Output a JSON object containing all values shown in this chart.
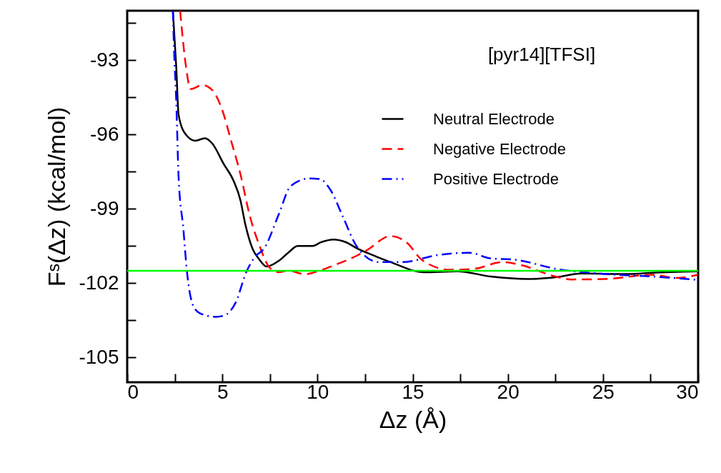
{
  "chart_data": {
    "type": "line",
    "xlabel": "Δz (Å)",
    "ylabel": "Fˢ(Δz) (kcal/mol)",
    "annotations": [
      "[pyr14][TFSI]"
    ],
    "legend": "top right",
    "grid": false,
    "xlim": [
      0,
      30
    ],
    "xticks": [
      0,
      {
        "value": 2.5,
        "label": null
      },
      5,
      {
        "value": 7.5,
        "label": null
      },
      10,
      {
        "value": 12.5,
        "label": null
      },
      15,
      {
        "value": 17.5,
        "label": null
      },
      20,
      {
        "value": 22.5,
        "label": null
      },
      25,
      {
        "value": 27.5,
        "label": null
      },
      30
    ],
    "ylim": [
      -106,
      -91
    ],
    "yticks": [
      {
        "value": -91.5,
        "label": null
      },
      -93,
      {
        "value": -94.5,
        "label": null
      },
      -96,
      {
        "value": -97.5,
        "label": null
      },
      -99,
      {
        "value": -100.5,
        "label": null
      },
      -102,
      {
        "value": -103.5,
        "label": null
      },
      -105
    ],
    "ref_lines": [
      {
        "axis": "y",
        "value": -101.5,
        "color": "#00ff00"
      }
    ],
    "series": [
      {
        "name": "Neutral Electrode",
        "color": "#000000",
        "line_style": "solid",
        "x": [
          2.4,
          2.58,
          2.7,
          3.08,
          3.58,
          4.08,
          4.46,
          5.08,
          5.58,
          5.95,
          6.2,
          6.58,
          6.95,
          7.33,
          7.96,
          8.46,
          8.96,
          9.71,
          10.21,
          10.84,
          11.47,
          12.09,
          12.59,
          13.84,
          15.6,
          17.35,
          19.1,
          21.1,
          22.6,
          23.85,
          26.36,
          27.6,
          30
        ],
        "values": [
          -91,
          -93.3,
          -95.2,
          -96,
          -96.25,
          -96.15,
          -96.35,
          -97.2,
          -97.85,
          -98.65,
          -99.6,
          -100.6,
          -101.05,
          -101.33,
          -101.1,
          -100.77,
          -100.5,
          -100.5,
          -100.34,
          -100.24,
          -100.34,
          -100.6,
          -100.77,
          -101.15,
          -101.56,
          -101.52,
          -101.73,
          -101.83,
          -101.75,
          -101.61,
          -101.63,
          -101.58,
          -101.52
        ]
      },
      {
        "name": "Negative Electrode",
        "color": "#ff0000",
        "line_style": "dashed",
        "x": [
          2.78,
          3.08,
          3.33,
          3.96,
          4.46,
          4.96,
          5.46,
          5.95,
          6.46,
          6.95,
          7.46,
          7.96,
          8.46,
          9.33,
          9.96,
          10.96,
          12.09,
          12.59,
          13.84,
          14.72,
          15.47,
          16.97,
          18.22,
          19.72,
          20.85,
          22.1,
          23.36,
          25.1,
          27.6,
          28.86,
          30
        ],
        "values": [
          -91,
          -93.2,
          -94.16,
          -94,
          -94.2,
          -94.93,
          -96.25,
          -97.6,
          -99.33,
          -100.48,
          -101.35,
          -101.56,
          -101.49,
          -101.64,
          -101.53,
          -101.25,
          -100.88,
          -100.67,
          -100.1,
          -100.38,
          -101.05,
          -101.46,
          -101.42,
          -101.15,
          -101.3,
          -101.64,
          -101.85,
          -101.83,
          -101.66,
          -101.79,
          -101.66
        ]
      },
      {
        "name": "Positive Electrode",
        "color": "#0000ff",
        "line_style": "dashdot",
        "x": [
          2.4,
          2.45,
          2.58,
          2.7,
          2.95,
          3.14,
          3.45,
          3.83,
          4.65,
          5.08,
          5.7,
          6.27,
          6.7,
          7.21,
          7.96,
          8.59,
          9.59,
          10.09,
          10.71,
          11.34,
          12.09,
          13.22,
          14.47,
          16.34,
          17.97,
          19.1,
          20.35,
          22.6,
          25.1,
          27.6,
          30
        ],
        "values": [
          -91,
          -92.3,
          -94.7,
          -97.7,
          -99.8,
          -101.53,
          -102.88,
          -103.22,
          -103.36,
          -103.31,
          -102.78,
          -101.53,
          -100.95,
          -100.58,
          -99.23,
          -98.08,
          -97.77,
          -97.79,
          -98.27,
          -99.33,
          -100.55,
          -101.15,
          -101.15,
          -100.86,
          -100.77,
          -101,
          -101.05,
          -101.43,
          -101.63,
          -101.73,
          -101.87
        ]
      }
    ]
  }
}
